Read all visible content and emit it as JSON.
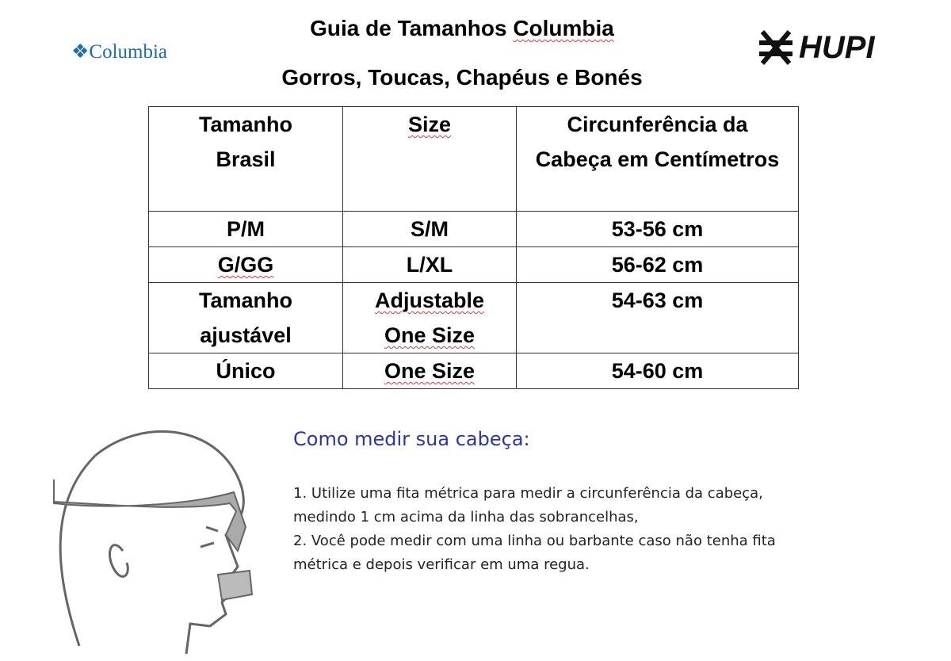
{
  "header": {
    "title_prefix": "Guia de Tamanhos",
    "title_brand": "Columbia",
    "subtitle": "Gorros, Toucas, Chapéus e Bonés",
    "logo_left": "Columbia",
    "logo_right": "HUPI"
  },
  "table": {
    "headers": [
      "Tamanho Brasil",
      "Size",
      "Circunferência da Cabeça em Centímetros"
    ],
    "rows": [
      [
        "P/M",
        "S/M",
        "53-56 cm"
      ],
      [
        "G/GG",
        "L/XL",
        "56-62 cm"
      ],
      [
        "Tamanho ajustável",
        "Adjustable One Size",
        "54-63 cm"
      ],
      [
        "Único",
        "One Size",
        "54-60 cm"
      ]
    ]
  },
  "instructions": {
    "heading": "Como medir sua cabeça:",
    "lines": [
      "1. Utilize uma fita métrica para medir a circunferência da cabeça,",
      "medindo 1 cm acima da linha das sobrancelhas,",
      "2. Você pode medir com uma linha ou barbante caso não tenha fita",
      "métrica e depois verificar em uma regua."
    ]
  }
}
